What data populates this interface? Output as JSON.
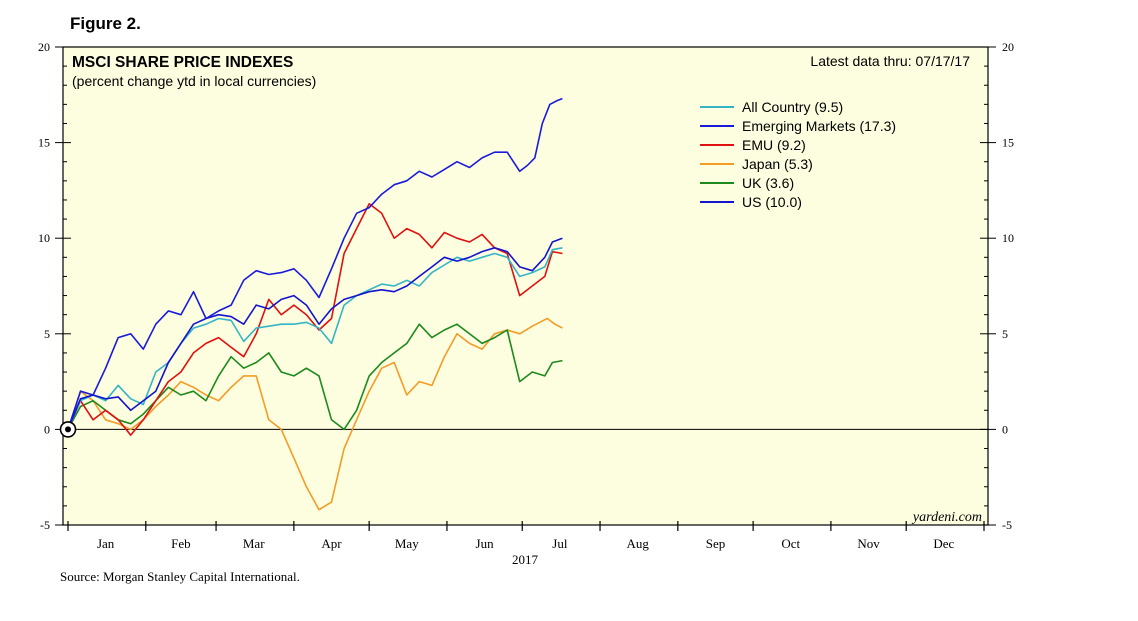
{
  "figure_label": "Figure 2.",
  "source": "Source: Morgan Stanley Capital International.",
  "watermark": "yardeni.com",
  "chart_data": {
    "type": "line",
    "title": "MSCI SHARE PRICE INDEXES",
    "subtitle": "(percent change ytd in local currencies)",
    "latest": "Latest data thru: 07/17/17",
    "year_label": "2017",
    "ylim": [
      -5,
      20
    ],
    "yticks": [
      -5,
      0,
      5,
      10,
      15,
      20
    ],
    "ytick_labels": [
      "-5",
      "0",
      "5",
      "10",
      "15",
      "20"
    ],
    "xlim": [
      0,
      365
    ],
    "months": [
      "Jan",
      "Feb",
      "Mar",
      "Apr",
      "May",
      "Jun",
      "Jul",
      "Aug",
      "Sep",
      "Oct",
      "Nov",
      "Dec"
    ],
    "month_mid_days": [
      15,
      45,
      74,
      105,
      135,
      166,
      196,
      227,
      258,
      288,
      319,
      349
    ],
    "series": [
      {
        "name": "All Country",
        "label": "All Country (9.5)",
        "color": "#33b5c6",
        "x": [
          0,
          5,
          10,
          15,
          20,
          25,
          30,
          35,
          40,
          45,
          50,
          55,
          60,
          65,
          70,
          75,
          80,
          85,
          90,
          95,
          100,
          105,
          110,
          115,
          120,
          125,
          130,
          135,
          140,
          145,
          150,
          155,
          160,
          165,
          170,
          175,
          180,
          185,
          190,
          193,
          197
        ],
        "y": [
          0,
          1.5,
          1.8,
          1.5,
          2.3,
          1.6,
          1.3,
          3.0,
          3.5,
          4.5,
          5.3,
          5.5,
          5.8,
          5.7,
          4.6,
          5.3,
          5.4,
          5.5,
          5.5,
          5.6,
          5.3,
          4.5,
          6.5,
          7.0,
          7.3,
          7.6,
          7.5,
          7.8,
          7.5,
          8.2,
          8.6,
          9.0,
          8.8,
          9.0,
          9.2,
          9.0,
          8.0,
          8.2,
          8.5,
          9.4,
          9.5
        ]
      },
      {
        "name": "Emerging Markets",
        "label": "Emerging Markets (17.3)",
        "color": "#1a1adc",
        "x": [
          0,
          5,
          10,
          15,
          20,
          25,
          30,
          35,
          40,
          45,
          50,
          55,
          60,
          65,
          70,
          75,
          80,
          85,
          90,
          95,
          100,
          105,
          110,
          115,
          120,
          125,
          130,
          135,
          140,
          145,
          150,
          155,
          160,
          165,
          170,
          175,
          180,
          183,
          186,
          189,
          192,
          195,
          197
        ],
        "y": [
          0,
          2.0,
          1.8,
          3.2,
          4.8,
          5.0,
          4.2,
          5.5,
          6.2,
          6.0,
          7.2,
          5.8,
          6.2,
          6.5,
          7.8,
          8.3,
          8.1,
          8.2,
          8.4,
          7.8,
          6.9,
          8.4,
          10.0,
          11.3,
          11.6,
          12.3,
          12.8,
          13.0,
          13.5,
          13.2,
          13.6,
          14.0,
          13.7,
          14.2,
          14.5,
          14.5,
          13.5,
          13.8,
          14.2,
          16.0,
          17.0,
          17.2,
          17.3
        ]
      },
      {
        "name": "EMU",
        "label": "EMU (9.2)",
        "color": "#e01010",
        "x": [
          0,
          5,
          10,
          15,
          20,
          25,
          30,
          35,
          40,
          45,
          50,
          55,
          60,
          65,
          70,
          75,
          80,
          85,
          90,
          95,
          100,
          105,
          110,
          115,
          120,
          125,
          130,
          135,
          140,
          145,
          150,
          155,
          160,
          165,
          170,
          175,
          180,
          185,
          190,
          193,
          197
        ],
        "y": [
          0,
          1.5,
          0.5,
          1.0,
          0.5,
          -0.3,
          0.5,
          1.5,
          2.5,
          3.0,
          4.0,
          4.5,
          4.8,
          4.3,
          3.8,
          5.0,
          6.8,
          6.0,
          6.5,
          6.0,
          5.2,
          5.8,
          9.2,
          10.5,
          11.8,
          11.3,
          10.0,
          10.5,
          10.2,
          9.5,
          10.3,
          10.0,
          9.8,
          10.2,
          9.5,
          9.2,
          7.0,
          7.5,
          8.0,
          9.3,
          9.2
        ]
      },
      {
        "name": "Japan",
        "label": "Japan (5.3)",
        "color": "#f39c26",
        "x": [
          0,
          5,
          10,
          15,
          20,
          25,
          30,
          35,
          40,
          45,
          50,
          55,
          60,
          65,
          70,
          75,
          80,
          85,
          90,
          95,
          100,
          105,
          110,
          115,
          120,
          125,
          130,
          135,
          140,
          145,
          150,
          155,
          160,
          165,
          170,
          175,
          180,
          185,
          188,
          191,
          194,
          197
        ],
        "y": [
          0,
          2.0,
          1.5,
          0.5,
          0.3,
          0.0,
          0.5,
          1.2,
          1.8,
          2.5,
          2.2,
          1.8,
          1.5,
          2.2,
          2.8,
          2.8,
          0.5,
          0.0,
          -1.5,
          -3.0,
          -4.2,
          -3.8,
          -1.0,
          0.5,
          2.0,
          3.2,
          3.5,
          1.8,
          2.5,
          2.3,
          3.8,
          5.0,
          4.5,
          4.2,
          5.0,
          5.2,
          5.0,
          5.4,
          5.6,
          5.8,
          5.5,
          5.3
        ]
      },
      {
        "name": "UK",
        "label": "UK (3.6)",
        "color": "#1c8a1c",
        "x": [
          0,
          5,
          10,
          15,
          20,
          25,
          30,
          35,
          40,
          45,
          50,
          55,
          60,
          65,
          70,
          75,
          80,
          85,
          90,
          95,
          100,
          105,
          110,
          115,
          120,
          125,
          130,
          135,
          140,
          145,
          150,
          155,
          160,
          165,
          170,
          175,
          180,
          185,
          190,
          193,
          197
        ],
        "y": [
          0,
          1.2,
          1.5,
          1.0,
          0.5,
          0.3,
          0.8,
          1.5,
          2.2,
          1.8,
          2.0,
          1.5,
          2.8,
          3.8,
          3.2,
          3.5,
          4.0,
          3.0,
          2.8,
          3.2,
          2.8,
          0.5,
          0.0,
          1.0,
          2.8,
          3.5,
          4.0,
          4.5,
          5.5,
          4.8,
          5.2,
          5.5,
          5.0,
          4.5,
          4.8,
          5.2,
          2.5,
          3.0,
          2.8,
          3.5,
          3.6
        ]
      },
      {
        "name": "US",
        "label": "US (10.0)",
        "color": "#1414cc",
        "x": [
          0,
          5,
          10,
          15,
          20,
          25,
          30,
          35,
          40,
          45,
          50,
          55,
          60,
          65,
          70,
          75,
          80,
          85,
          90,
          95,
          100,
          105,
          110,
          115,
          120,
          125,
          130,
          135,
          140,
          145,
          150,
          155,
          160,
          165,
          170,
          175,
          180,
          185,
          190,
          193,
          197
        ],
        "y": [
          0,
          1.6,
          1.8,
          1.6,
          1.7,
          1.0,
          1.5,
          2.0,
          3.5,
          4.5,
          5.5,
          5.8,
          6.0,
          5.9,
          5.5,
          6.5,
          6.3,
          6.8,
          7.0,
          6.5,
          5.5,
          6.3,
          6.8,
          7.0,
          7.2,
          7.3,
          7.2,
          7.5,
          8.0,
          8.5,
          9.0,
          8.8,
          9.0,
          9.3,
          9.5,
          9.3,
          8.5,
          8.3,
          9.0,
          9.8,
          10.0
        ]
      }
    ]
  }
}
